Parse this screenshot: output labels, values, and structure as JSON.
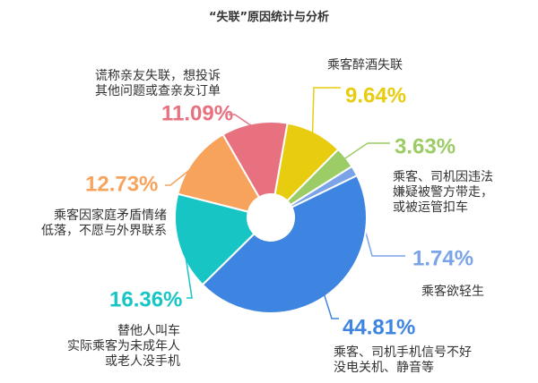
{
  "title": "“失联”原因统计与分析",
  "chart_data": {
    "type": "pie",
    "variant": "donut",
    "title": "“失联”原因统计与分析",
    "slices": [
      {
        "key": "drunk",
        "value": 9.64,
        "pct_label": "9.64%",
        "label_lines": [
          "乘客醉酒失联"
        ],
        "color": "#e8cc0f"
      },
      {
        "key": "police",
        "value": 3.63,
        "pct_label": "3.63%",
        "label_lines": [
          "乘客、司机因违法",
          "嫌疑被警方带走，",
          "或被运管扣车"
        ],
        "color": "#9ccc65"
      },
      {
        "key": "suicide",
        "value": 1.74,
        "pct_label": "1.74%",
        "label_lines": [
          "乘客欲轻生"
        ],
        "color": "#7aa3e8"
      },
      {
        "key": "phone",
        "value": 44.81,
        "pct_label": "44.81%",
        "label_lines": [
          "乘客、司机手机信号不好",
          "没电关机、静音等"
        ],
        "color": "#3d85e0"
      },
      {
        "key": "proxy",
        "value": 16.36,
        "pct_label": "16.36%",
        "label_lines": [
          "替他人叫车",
          "实际乘客为未成年人",
          "或老人没手机"
        ],
        "color": "#17c5c5"
      },
      {
        "key": "family",
        "value": 12.73,
        "pct_label": "12.73%",
        "label_lines": [
          "乘客因家庭矛盾情绪",
          "低落，不愿与外界联系"
        ],
        "color": "#f7a35c"
      },
      {
        "key": "false_claim",
        "value": 11.09,
        "pct_label": "11.09%",
        "label_lines": [
          "谎称亲友失联，想投诉",
          "其他问题或查亲友订单"
        ],
        "color": "#e8717f"
      }
    ]
  }
}
